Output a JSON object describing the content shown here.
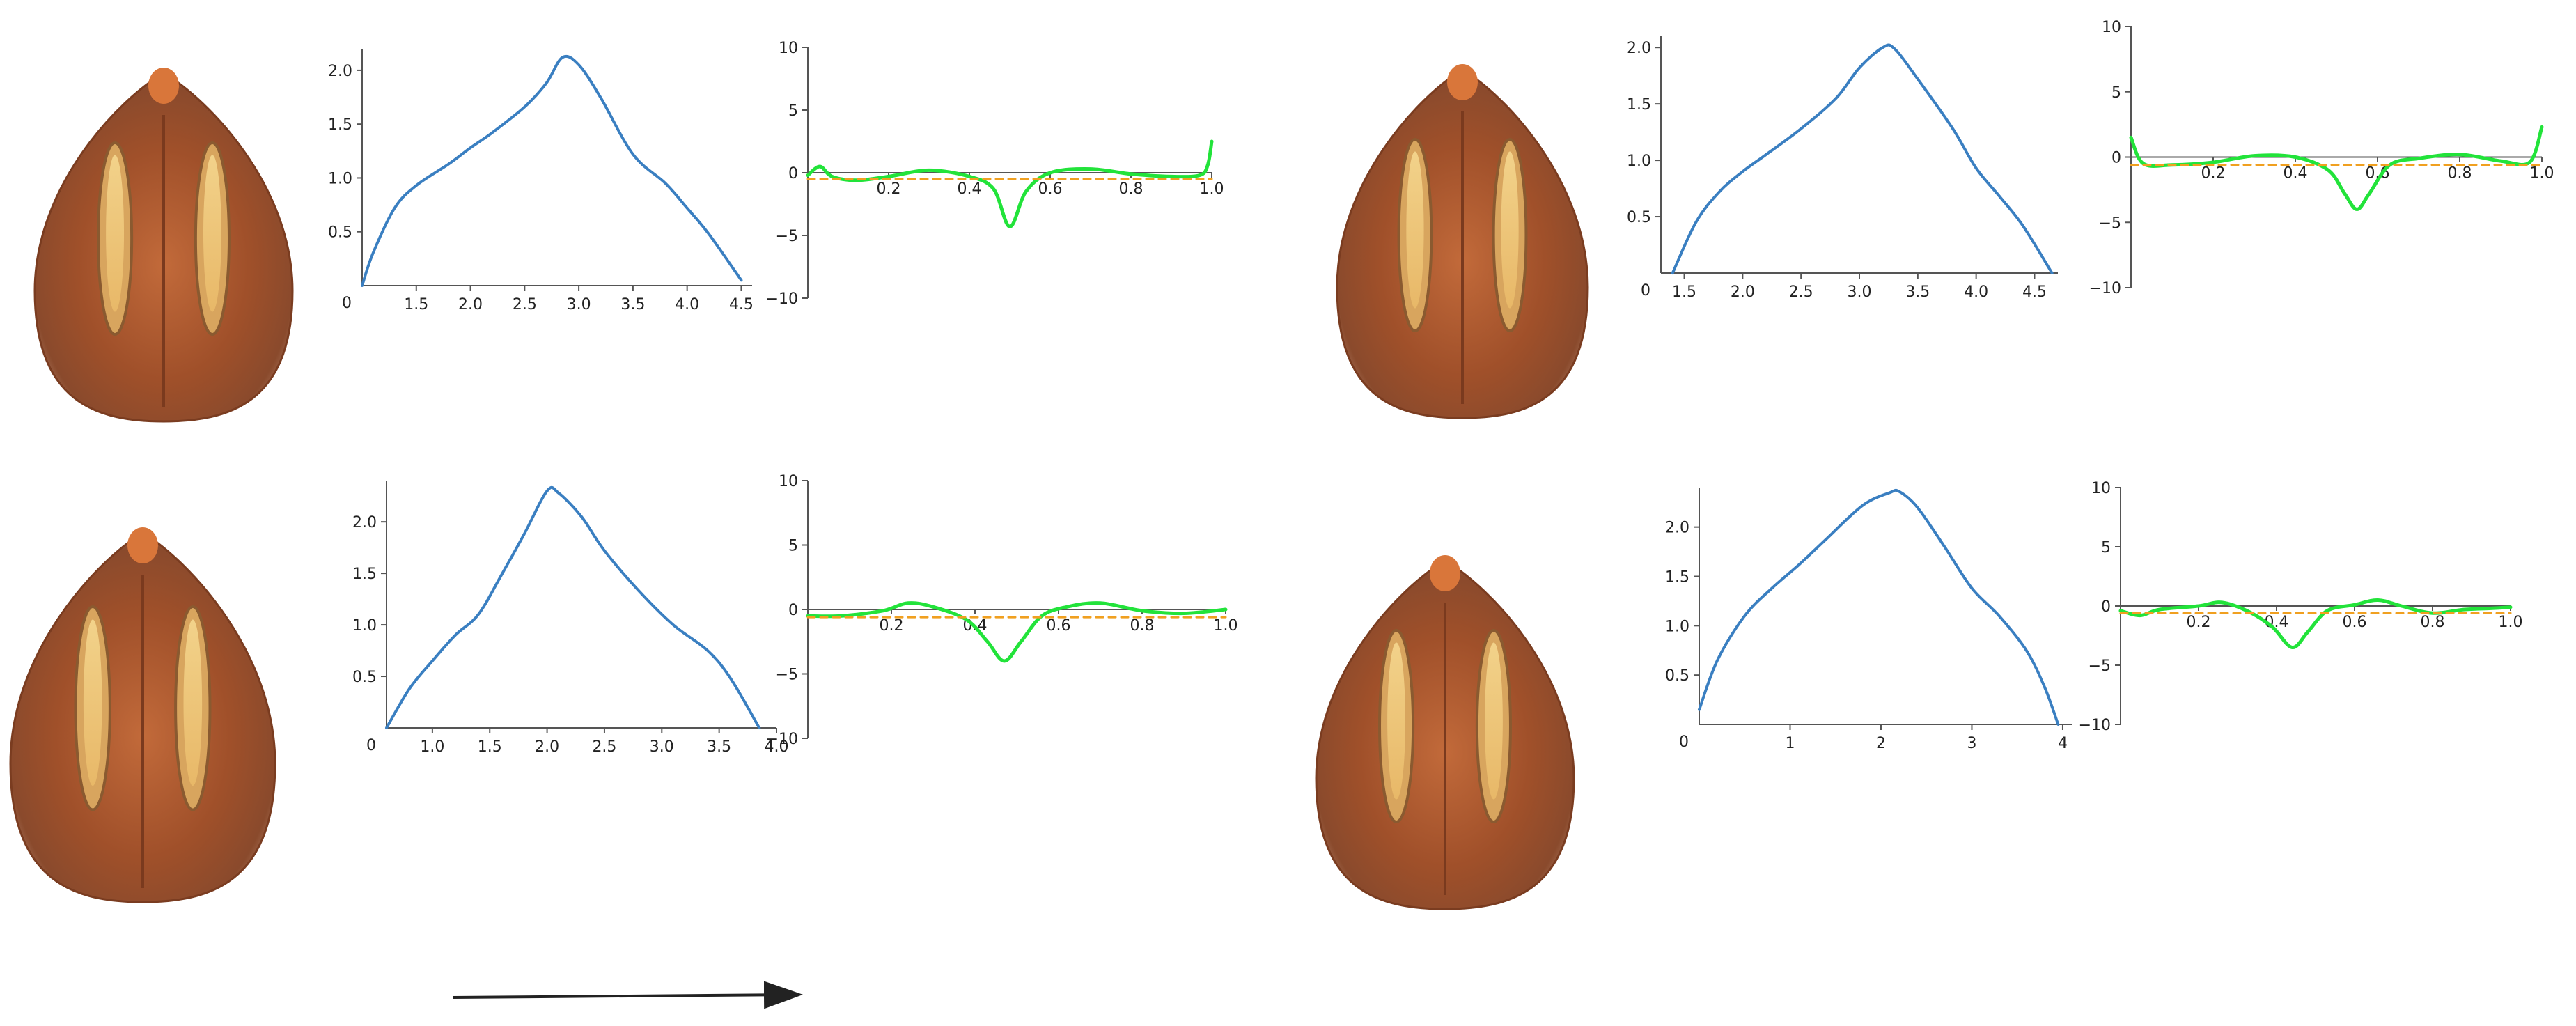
{
  "figure": {
    "panels": [
      {
        "id": "top-left"
      },
      {
        "id": "top-right"
      },
      {
        "id": "bottom-left"
      },
      {
        "id": "bottom-right"
      }
    ]
  },
  "chart_data": [
    {
      "type": "line",
      "panel": "top-left",
      "role": "profile",
      "xlim": [
        1.0,
        4.6
      ],
      "ylim": [
        0,
        2.2
      ],
      "xticks": [
        1.5,
        2.0,
        2.5,
        3.0,
        3.5,
        4.0,
        4.5
      ],
      "xtick_labels": [
        "1.5",
        "2.0",
        "2.5",
        "3.0",
        "3.5",
        "4.0",
        "4.5"
      ],
      "yticks": [
        0.5,
        1.0,
        1.5,
        2.0
      ],
      "ytick_labels": [
        "0.5",
        "1.0",
        "1.5",
        "2.0"
      ],
      "origin_label": "0",
      "series": [
        {
          "color": "#3a7fc1",
          "points": [
            [
              1.0,
              0.0
            ],
            [
              1.1,
              0.3
            ],
            [
              1.3,
              0.72
            ],
            [
              1.5,
              0.93
            ],
            [
              1.8,
              1.13
            ],
            [
              2.0,
              1.28
            ],
            [
              2.2,
              1.42
            ],
            [
              2.5,
              1.66
            ],
            [
              2.7,
              1.88
            ],
            [
              2.85,
              2.12
            ],
            [
              3.0,
              2.05
            ],
            [
              3.2,
              1.75
            ],
            [
              3.5,
              1.22
            ],
            [
              3.8,
              0.95
            ],
            [
              4.0,
              0.72
            ],
            [
              4.2,
              0.48
            ],
            [
              4.5,
              0.05
            ]
          ]
        }
      ]
    },
    {
      "type": "line",
      "panel": "top-left",
      "role": "curvature",
      "xlim": [
        0,
        1.0
      ],
      "ylim": [
        -10,
        10
      ],
      "xticks": [
        0.2,
        0.4,
        0.6,
        0.8,
        1.0
      ],
      "xtick_labels": [
        "0.2",
        "0.4",
        "0.6",
        "0.8",
        "1.0"
      ],
      "yticks": [
        -10,
        -5,
        0,
        5,
        10
      ],
      "ytick_labels": [
        "-10",
        "-5",
        "0",
        "5",
        "10"
      ],
      "series": [
        {
          "color": "#22e33a",
          "points": [
            [
              0.0,
              -0.2
            ],
            [
              0.03,
              0.5
            ],
            [
              0.06,
              -0.3
            ],
            [
              0.12,
              -0.6
            ],
            [
              0.2,
              -0.3
            ],
            [
              0.3,
              0.2
            ],
            [
              0.4,
              -0.3
            ],
            [
              0.46,
              -1.3
            ],
            [
              0.5,
              -4.3
            ],
            [
              0.54,
              -1.5
            ],
            [
              0.6,
              0.0
            ],
            [
              0.7,
              0.3
            ],
            [
              0.8,
              -0.1
            ],
            [
              0.9,
              -0.3
            ],
            [
              0.97,
              -0.2
            ],
            [
              0.99,
              0.6
            ],
            [
              1.0,
              2.5
            ]
          ]
        },
        {
          "color": "#f0a020",
          "dashed": true,
          "points": [
            [
              0.0,
              -0.5
            ],
            [
              1.0,
              -0.5
            ]
          ]
        }
      ]
    },
    {
      "type": "line",
      "panel": "top-right",
      "role": "profile",
      "xlim": [
        1.3,
        4.7
      ],
      "ylim": [
        0,
        2.1
      ],
      "xticks": [
        1.5,
        2.0,
        2.5,
        3.0,
        3.5,
        4.0,
        4.5
      ],
      "xtick_labels": [
        "1.5",
        "2.0",
        "2.5",
        "3.0",
        "3.5",
        "4.0",
        "4.5"
      ],
      "yticks": [
        0.5,
        1.0,
        1.5,
        2.0
      ],
      "ytick_labels": [
        "0.5",
        "1.0",
        "1.5",
        "2.0"
      ],
      "origin_label": "0",
      "series": [
        {
          "color": "#3a7fc1",
          "points": [
            [
              1.4,
              0.0
            ],
            [
              1.6,
              0.45
            ],
            [
              1.8,
              0.72
            ],
            [
              2.0,
              0.9
            ],
            [
              2.2,
              1.05
            ],
            [
              2.5,
              1.28
            ],
            [
              2.8,
              1.55
            ],
            [
              3.0,
              1.82
            ],
            [
              3.2,
              2.0
            ],
            [
              3.3,
              1.99
            ],
            [
              3.5,
              1.72
            ],
            [
              3.8,
              1.28
            ],
            [
              4.0,
              0.93
            ],
            [
              4.2,
              0.68
            ],
            [
              4.4,
              0.42
            ],
            [
              4.65,
              0.0
            ]
          ]
        }
      ]
    },
    {
      "type": "line",
      "panel": "top-right",
      "role": "curvature",
      "xlim": [
        0,
        1.0
      ],
      "ylim": [
        -10,
        10
      ],
      "xticks": [
        0.2,
        0.4,
        0.6,
        0.8,
        1.0
      ],
      "xtick_labels": [
        "0.2",
        "0.4",
        "0.6",
        "0.8",
        "1.0"
      ],
      "yticks": [
        -10,
        -5,
        0,
        5,
        10
      ],
      "ytick_labels": [
        "-10",
        "-5",
        "0",
        "5",
        "10"
      ],
      "series": [
        {
          "color": "#22e33a",
          "points": [
            [
              0.0,
              1.5
            ],
            [
              0.03,
              -0.5
            ],
            [
              0.1,
              -0.6
            ],
            [
              0.2,
              -0.4
            ],
            [
              0.3,
              0.1
            ],
            [
              0.4,
              0.0
            ],
            [
              0.48,
              -1.0
            ],
            [
              0.52,
              -2.8
            ],
            [
              0.55,
              -4.0
            ],
            [
              0.58,
              -2.8
            ],
            [
              0.63,
              -0.6
            ],
            [
              0.7,
              -0.1
            ],
            [
              0.8,
              0.2
            ],
            [
              0.9,
              -0.3
            ],
            [
              0.97,
              -0.4
            ],
            [
              1.0,
              2.3
            ]
          ]
        },
        {
          "color": "#f0a020",
          "dashed": true,
          "points": [
            [
              0.0,
              -0.6
            ],
            [
              1.0,
              -0.6
            ]
          ]
        }
      ]
    },
    {
      "type": "line",
      "panel": "bottom-left",
      "role": "profile",
      "xlim": [
        0.6,
        4.0
      ],
      "ylim": [
        0,
        2.4
      ],
      "xticks": [
        1.0,
        1.5,
        2.0,
        2.5,
        3.0,
        3.5,
        4.0
      ],
      "xtick_labels": [
        "1.0",
        "1.5",
        "2.0",
        "2.5",
        "3.0",
        "3.5",
        "4.0"
      ],
      "yticks": [
        0.5,
        1.0,
        1.5,
        2.0
      ],
      "ytick_labels": [
        "0.5",
        "1.0",
        "1.5",
        "2.0"
      ],
      "origin_label": "0",
      "series": [
        {
          "color": "#3a7fc1",
          "points": [
            [
              0.6,
              0.0
            ],
            [
              0.8,
              0.38
            ],
            [
              1.0,
              0.65
            ],
            [
              1.2,
              0.9
            ],
            [
              1.4,
              1.1
            ],
            [
              1.6,
              1.48
            ],
            [
              1.8,
              1.88
            ],
            [
              2.0,
              2.3
            ],
            [
              2.1,
              2.28
            ],
            [
              2.3,
              2.05
            ],
            [
              2.5,
              1.72
            ],
            [
              2.8,
              1.33
            ],
            [
              3.1,
              1.0
            ],
            [
              3.4,
              0.75
            ],
            [
              3.6,
              0.48
            ],
            [
              3.85,
              0.0
            ]
          ]
        }
      ]
    },
    {
      "type": "line",
      "panel": "bottom-left",
      "role": "curvature",
      "xlim": [
        0,
        1.0
      ],
      "ylim": [
        -10,
        10
      ],
      "xticks": [
        0.2,
        0.4,
        0.6,
        0.8,
        1.0
      ],
      "xtick_labels": [
        "0.2",
        "0.4",
        "0.6",
        "0.8",
        "1.0"
      ],
      "yticks": [
        -10,
        -5,
        0,
        5,
        10
      ],
      "ytick_labels": [
        "-10",
        "-5",
        "0",
        "5",
        "10"
      ],
      "series": [
        {
          "color": "#22e33a",
          "points": [
            [
              0.0,
              -0.5
            ],
            [
              0.08,
              -0.5
            ],
            [
              0.18,
              -0.1
            ],
            [
              0.24,
              0.5
            ],
            [
              0.3,
              0.2
            ],
            [
              0.38,
              -0.8
            ],
            [
              0.43,
              -2.5
            ],
            [
              0.47,
              -4.0
            ],
            [
              0.51,
              -2.5
            ],
            [
              0.56,
              -0.5
            ],
            [
              0.62,
              0.2
            ],
            [
              0.7,
              0.5
            ],
            [
              0.8,
              -0.1
            ],
            [
              0.9,
              -0.3
            ],
            [
              1.0,
              0.0
            ]
          ]
        },
        {
          "color": "#f0a020",
          "dashed": true,
          "points": [
            [
              0.0,
              -0.6
            ],
            [
              1.0,
              -0.6
            ]
          ]
        }
      ]
    },
    {
      "type": "line",
      "panel": "bottom-right",
      "role": "profile",
      "xlim": [
        0,
        4.1
      ],
      "ylim": [
        0,
        2.4
      ],
      "xticks": [
        1,
        2,
        3,
        4
      ],
      "xtick_labels": [
        "1",
        "2",
        "3",
        "4"
      ],
      "yticks": [
        0.5,
        1.0,
        1.5,
        2.0
      ],
      "ytick_labels": [
        "0.5",
        "1.0",
        "1.5",
        "2.0"
      ],
      "origin_label": "0",
      "series": [
        {
          "color": "#3a7fc1",
          "points": [
            [
              0.0,
              0.15
            ],
            [
              0.2,
              0.65
            ],
            [
              0.5,
              1.1
            ],
            [
              0.8,
              1.38
            ],
            [
              1.1,
              1.62
            ],
            [
              1.4,
              1.88
            ],
            [
              1.8,
              2.22
            ],
            [
              2.1,
              2.35
            ],
            [
              2.2,
              2.36
            ],
            [
              2.4,
              2.2
            ],
            [
              2.7,
              1.8
            ],
            [
              3.0,
              1.38
            ],
            [
              3.3,
              1.1
            ],
            [
              3.6,
              0.75
            ],
            [
              3.8,
              0.38
            ],
            [
              3.95,
              0.0
            ]
          ]
        }
      ]
    },
    {
      "type": "line",
      "panel": "bottom-right",
      "role": "curvature",
      "xlim": [
        0,
        1.0
      ],
      "ylim": [
        -10,
        10
      ],
      "xticks": [
        0.2,
        0.4,
        0.6,
        0.8,
        1.0
      ],
      "xtick_labels": [
        "0.2",
        "0.4",
        "0.6",
        "0.8",
        "1.0"
      ],
      "yticks": [
        -10,
        -5,
        0,
        5,
        10
      ],
      "ytick_labels": [
        "-10",
        "-5",
        "0",
        "5",
        "10"
      ],
      "series": [
        {
          "color": "#22e33a",
          "points": [
            [
              0.0,
              -0.4
            ],
            [
              0.05,
              -0.8
            ],
            [
              0.1,
              -0.3
            ],
            [
              0.2,
              0.0
            ],
            [
              0.26,
              0.3
            ],
            [
              0.33,
              -0.5
            ],
            [
              0.39,
              -1.8
            ],
            [
              0.44,
              -3.5
            ],
            [
              0.48,
              -2.2
            ],
            [
              0.53,
              -0.4
            ],
            [
              0.6,
              0.1
            ],
            [
              0.66,
              0.5
            ],
            [
              0.72,
              0.0
            ],
            [
              0.8,
              -0.6
            ],
            [
              0.88,
              -0.3
            ],
            [
              0.95,
              -0.2
            ],
            [
              1.0,
              -0.1
            ]
          ]
        },
        {
          "color": "#f0a020",
          "dashed": true,
          "points": [
            [
              0.0,
              -0.6
            ],
            [
              1.0,
              -0.6
            ]
          ]
        }
      ]
    }
  ]
}
